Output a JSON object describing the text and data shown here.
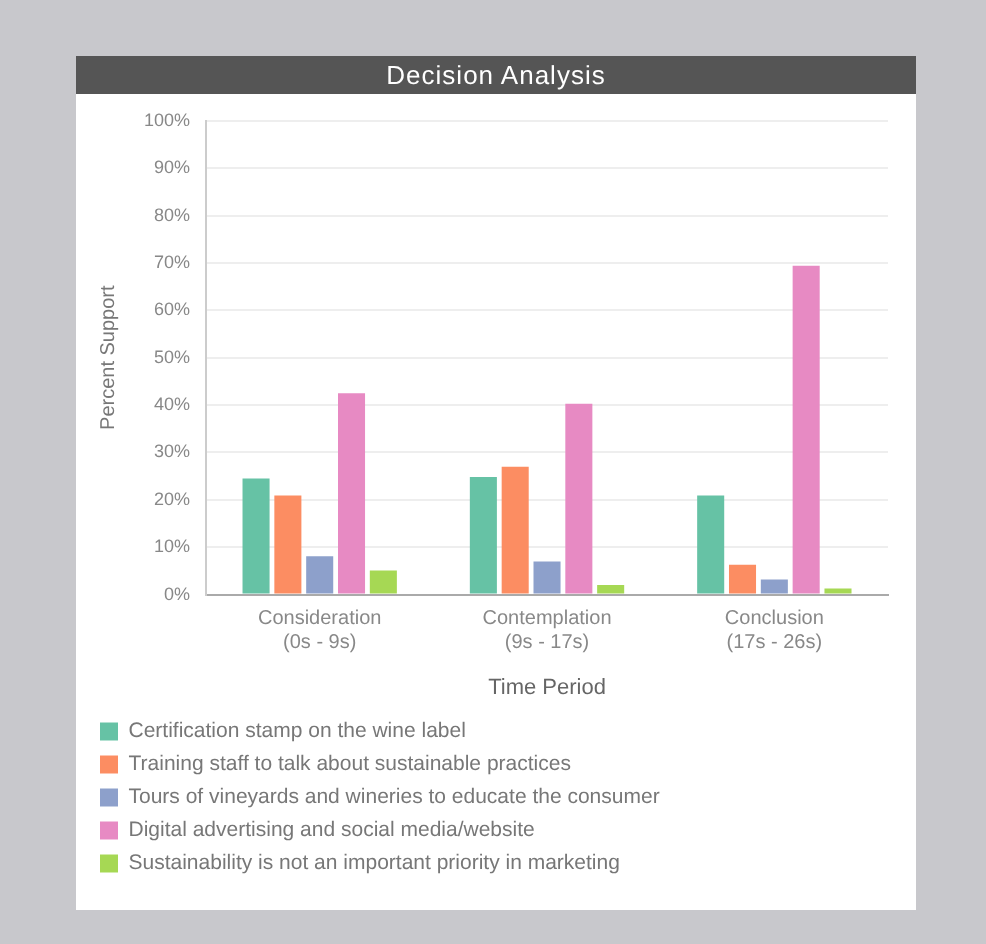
{
  "chart_data": {
    "type": "bar",
    "title": "Decision Analysis",
    "xlabel": "Time Period",
    "ylabel": "Percent Support",
    "categories": [
      "Consideration\n(0s - 9s)",
      "Contemplation\n(9s - 17s)",
      "Conclusion\n(17s - 26s)"
    ],
    "series": [
      {
        "name": "Certification stamp on the wine label",
        "color": "#66c2a5",
        "values": [
          24.5,
          24.8,
          20.9
        ]
      },
      {
        "name": "Training staff to talk about sustainable practices",
        "color": "#fc8d62",
        "values": [
          20.9,
          27,
          6.3
        ]
      },
      {
        "name": "Tours of vineyards and wineries to educate the consumer",
        "color": "#8da0cb",
        "values": [
          8.1,
          7,
          3.2
        ]
      },
      {
        "name": "Digital advertising and social media/website",
        "color": "#e78ac3",
        "values": [
          42.5,
          40.3,
          69.4
        ]
      },
      {
        "name": "Sustainability is not an important priority in marketing",
        "color": "#a6d854",
        "values": [
          5.1,
          2,
          1.3
        ]
      }
    ],
    "ylim": [
      0,
      100
    ],
    "yticks": [
      {
        "value": 0,
        "label": "0%"
      },
      {
        "value": 10,
        "label": "10%"
      },
      {
        "value": 20,
        "label": "20%"
      },
      {
        "value": 30,
        "label": "30%"
      },
      {
        "value": 40,
        "label": "40%"
      },
      {
        "value": 50,
        "label": "50%"
      },
      {
        "value": 60,
        "label": "60%"
      },
      {
        "value": 70,
        "label": "70%"
      },
      {
        "value": 80,
        "label": "80%"
      },
      {
        "value": 90,
        "label": "90%"
      },
      {
        "value": 100,
        "label": "100%"
      }
    ],
    "grid": "y",
    "legend": "bottom"
  }
}
